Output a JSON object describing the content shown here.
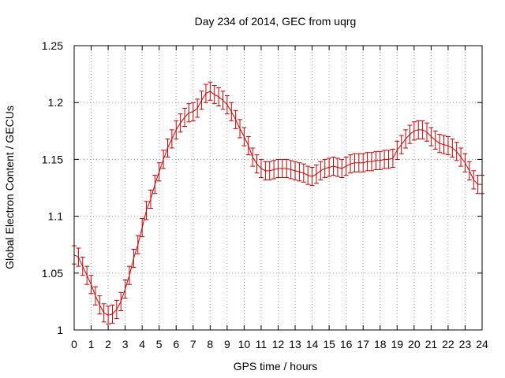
{
  "chart_data": {
    "type": "line",
    "title": "Day 234 of 2014, GEC from uqrg",
    "xlabel": "GPS time / hours",
    "ylabel": "Global Electron Content / GECUs",
    "xlim": [
      0,
      24
    ],
    "ylim": [
      1.0,
      1.25
    ],
    "xticks": [
      "0",
      "1",
      "2",
      "3",
      "4",
      "5",
      "6",
      "7",
      "8",
      "9",
      "10",
      "11",
      "12",
      "13",
      "14",
      "15",
      "16",
      "17",
      "18",
      "19",
      "20",
      "21",
      "22",
      "23",
      "24"
    ],
    "yticks": [
      "1",
      "1.05",
      "1.1",
      "1.15",
      "1.2",
      "1.25"
    ],
    "grid": true,
    "error_bars": true,
    "series_color": "#cc0000",
    "grid_color": "#a0a0a0",
    "series": [
      {
        "x": [
          0,
          0.25,
          0.5,
          0.75,
          1,
          1.25,
          1.5,
          1.75,
          2,
          2.25,
          2.5,
          2.75,
          3,
          3.25,
          3.5,
          3.75,
          4,
          4.25,
          4.5,
          4.75,
          5,
          5.25,
          5.5,
          5.75,
          6,
          6.25,
          6.5,
          6.75,
          7,
          7.25,
          7.5,
          7.75,
          8,
          8.25,
          8.5,
          8.75,
          9,
          9.25,
          9.5,
          9.75,
          10,
          10.25,
          10.5,
          10.75,
          11,
          11.25,
          11.5,
          11.75,
          12,
          12.25,
          12.5,
          12.75,
          13,
          13.25,
          13.5,
          13.75,
          14,
          14.25,
          14.5,
          14.75,
          15,
          15.25,
          15.5,
          15.75,
          16,
          16.25,
          16.5,
          16.75,
          17,
          17.25,
          17.5,
          17.75,
          18,
          18.25,
          18.5,
          18.75,
          19,
          19.25,
          19.5,
          19.75,
          20,
          20.25,
          20.5,
          20.75,
          21,
          21.25,
          21.5,
          21.75,
          22,
          22.25,
          22.5,
          22.75,
          23,
          23.25,
          23.5,
          23.75,
          24
        ],
        "y": [
          1.066,
          1.064,
          1.056,
          1.048,
          1.04,
          1.03,
          1.022,
          1.015,
          1.013,
          1.014,
          1.018,
          1.025,
          1.036,
          1.048,
          1.063,
          1.075,
          1.09,
          1.105,
          1.115,
          1.128,
          1.139,
          1.15,
          1.16,
          1.168,
          1.176,
          1.182,
          1.187,
          1.191,
          1.192,
          1.195,
          1.202,
          1.208,
          1.21,
          1.207,
          1.205,
          1.202,
          1.198,
          1.192,
          1.185,
          1.177,
          1.17,
          1.162,
          1.152,
          1.146,
          1.142,
          1.14,
          1.14,
          1.141,
          1.142,
          1.142,
          1.142,
          1.141,
          1.14,
          1.139,
          1.138,
          1.136,
          1.135,
          1.137,
          1.14,
          1.142,
          1.143,
          1.144,
          1.143,
          1.142,
          1.144,
          1.146,
          1.147,
          1.147,
          1.147,
          1.148,
          1.148,
          1.149,
          1.149,
          1.15,
          1.15,
          1.151,
          1.158,
          1.163,
          1.168,
          1.172,
          1.175,
          1.176,
          1.176,
          1.174,
          1.17,
          1.167,
          1.164,
          1.163,
          1.162,
          1.16,
          1.157,
          1.152,
          1.147,
          1.14,
          1.132,
          1.128,
          1.128
        ],
        "error": 0.008
      }
    ]
  }
}
